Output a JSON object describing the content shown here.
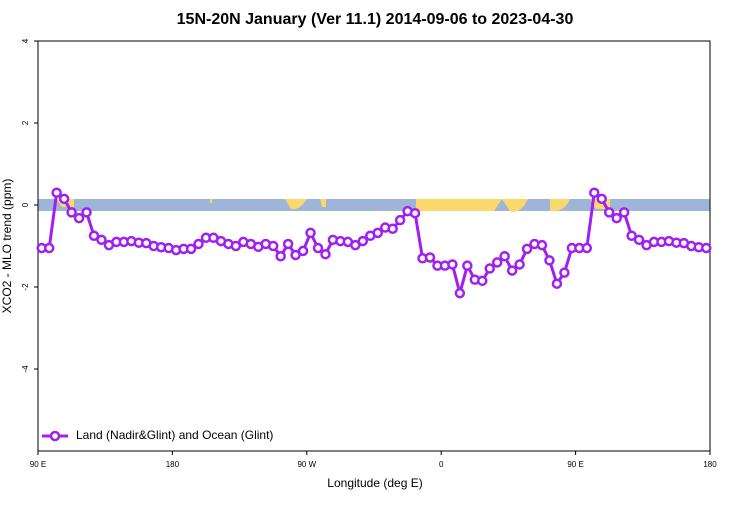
{
  "chart_data": {
    "type": "line",
    "title": "15N-20N January (Ver 11.1)   2014-09-06 to 2023-04-30",
    "x_label": "Longitude (deg E)",
    "y_label": "XCO2 - MLO trend (ppm)",
    "x": [
      92.5,
      97.5,
      102.5,
      107.5,
      112.5,
      117.5,
      122.5,
      127.5,
      132.5,
      137.5,
      142.5,
      147.5,
      152.5,
      157.5,
      162.5,
      167.5,
      172.5,
      177.5,
      182.5,
      187.5,
      192.5,
      197.5,
      202.5,
      207.5,
      212.5,
      217.5,
      222.5,
      227.5,
      232.5,
      237.5,
      242.5,
      247.5,
      252.5,
      257.5,
      262.5,
      267.5,
      272.5,
      277.5,
      282.5,
      287.5,
      292.5,
      297.5,
      302.5,
      307.5,
      312.5,
      317.5,
      322.5,
      327.5,
      332.5,
      337.5,
      342.5,
      347.5,
      352.5,
      357.5,
      362.5,
      367.5,
      372.5,
      377.5,
      382.5,
      387.5,
      392.5,
      397.5,
      402.5,
      407.5,
      412.5,
      417.5,
      422.5,
      427.5,
      432.5,
      437.5,
      442.5,
      447.5,
      452.5,
      457.5,
      462.5,
      467.5,
      472.5,
      477.5,
      482.5,
      487.5,
      492.5,
      497.5,
      502.5,
      507.5,
      512.5,
      517.5,
      522.5,
      527.5,
      532.5,
      537.5
    ],
    "series": [
      {
        "name": "Land (Nadir&Glint) and Ocean (Glint)",
        "color": "#a020f0",
        "values": [
          -1.05,
          -1.05,
          0.3,
          0.15,
          -0.18,
          -0.32,
          -0.18,
          -0.75,
          -0.85,
          -0.98,
          -0.9,
          -0.9,
          -0.88,
          -0.92,
          -0.93,
          -1.0,
          -1.03,
          -1.05,
          -1.1,
          -1.07,
          -1.07,
          -0.95,
          -0.8,
          -0.8,
          -0.88,
          -0.95,
          -1.0,
          -0.9,
          -0.95,
          -1.02,
          -0.95,
          -1.0,
          -1.25,
          -0.95,
          -1.22,
          -1.12,
          -0.68,
          -1.05,
          -1.2,
          -0.85,
          -0.88,
          -0.9,
          -0.98,
          -0.88,
          -0.75,
          -0.68,
          -0.55,
          -0.58,
          -0.37,
          -0.15,
          -0.2,
          -1.3,
          -1.28,
          -1.48,
          -1.48,
          -1.45,
          -2.15,
          -1.48,
          -1.82,
          -1.85,
          -1.55,
          -1.4,
          -1.25,
          -1.6,
          -1.45,
          -1.07,
          -0.95,
          -0.98,
          -1.35,
          -1.92,
          -1.65,
          -1.05,
          -1.05,
          -1.05,
          0.3,
          0.15,
          -0.18,
          -0.32,
          -0.18,
          -0.75,
          -0.85,
          -0.98,
          -0.9,
          -0.9,
          -0.88,
          -0.92,
          -0.93,
          -1.0,
          -1.03,
          -1.05
        ]
      }
    ],
    "xlim": [
      90,
      540
    ],
    "xticks": [
      {
        "value": 90,
        "label": "90 E"
      },
      {
        "value": 180,
        "label": "180"
      },
      {
        "value": 270,
        "label": "90 W"
      },
      {
        "value": 360,
        "label": "0"
      },
      {
        "value": 450,
        "label": "90 E"
      },
      {
        "value": 540,
        "label": "180"
      }
    ],
    "ylim": [
      -6,
      4
    ],
    "yticks": [
      -4,
      -2,
      0,
      2,
      4
    ],
    "legend": "bottom-left"
  }
}
